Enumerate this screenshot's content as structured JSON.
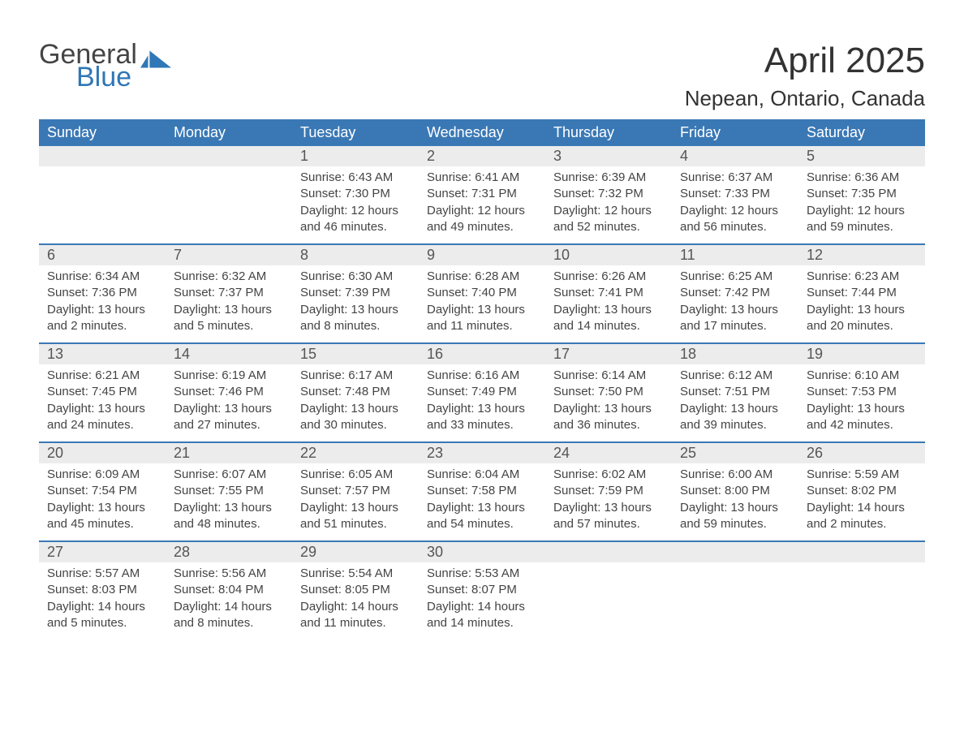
{
  "logo": {
    "text_top": "General",
    "text_bottom": "Blue",
    "flag_color": "#2f77b6"
  },
  "title": "April 2025",
  "location": "Nepean, Ontario, Canada",
  "colors": {
    "header_bg": "#3a78b5",
    "header_text": "#ffffff",
    "daynum_bg": "#ececec",
    "sep": "#3a78b5",
    "body_text": "#444444"
  },
  "weekdays": [
    "Sunday",
    "Monday",
    "Tuesday",
    "Wednesday",
    "Thursday",
    "Friday",
    "Saturday"
  ],
  "weeks": [
    [
      {
        "n": "",
        "lines": []
      },
      {
        "n": "",
        "lines": []
      },
      {
        "n": "1",
        "lines": [
          "Sunrise: 6:43 AM",
          "Sunset: 7:30 PM",
          "Daylight: 12 hours and 46 minutes."
        ]
      },
      {
        "n": "2",
        "lines": [
          "Sunrise: 6:41 AM",
          "Sunset: 7:31 PM",
          "Daylight: 12 hours and 49 minutes."
        ]
      },
      {
        "n": "3",
        "lines": [
          "Sunrise: 6:39 AM",
          "Sunset: 7:32 PM",
          "Daylight: 12 hours and 52 minutes."
        ]
      },
      {
        "n": "4",
        "lines": [
          "Sunrise: 6:37 AM",
          "Sunset: 7:33 PM",
          "Daylight: 12 hours and 56 minutes."
        ]
      },
      {
        "n": "5",
        "lines": [
          "Sunrise: 6:36 AM",
          "Sunset: 7:35 PM",
          "Daylight: 12 hours and 59 minutes."
        ]
      }
    ],
    [
      {
        "n": "6",
        "lines": [
          "Sunrise: 6:34 AM",
          "Sunset: 7:36 PM",
          "Daylight: 13 hours and 2 minutes."
        ]
      },
      {
        "n": "7",
        "lines": [
          "Sunrise: 6:32 AM",
          "Sunset: 7:37 PM",
          "Daylight: 13 hours and 5 minutes."
        ]
      },
      {
        "n": "8",
        "lines": [
          "Sunrise: 6:30 AM",
          "Sunset: 7:39 PM",
          "Daylight: 13 hours and 8 minutes."
        ]
      },
      {
        "n": "9",
        "lines": [
          "Sunrise: 6:28 AM",
          "Sunset: 7:40 PM",
          "Daylight: 13 hours and 11 minutes."
        ]
      },
      {
        "n": "10",
        "lines": [
          "Sunrise: 6:26 AM",
          "Sunset: 7:41 PM",
          "Daylight: 13 hours and 14 minutes."
        ]
      },
      {
        "n": "11",
        "lines": [
          "Sunrise: 6:25 AM",
          "Sunset: 7:42 PM",
          "Daylight: 13 hours and 17 minutes."
        ]
      },
      {
        "n": "12",
        "lines": [
          "Sunrise: 6:23 AM",
          "Sunset: 7:44 PM",
          "Daylight: 13 hours and 20 minutes."
        ]
      }
    ],
    [
      {
        "n": "13",
        "lines": [
          "Sunrise: 6:21 AM",
          "Sunset: 7:45 PM",
          "Daylight: 13 hours and 24 minutes."
        ]
      },
      {
        "n": "14",
        "lines": [
          "Sunrise: 6:19 AM",
          "Sunset: 7:46 PM",
          "Daylight: 13 hours and 27 minutes."
        ]
      },
      {
        "n": "15",
        "lines": [
          "Sunrise: 6:17 AM",
          "Sunset: 7:48 PM",
          "Daylight: 13 hours and 30 minutes."
        ]
      },
      {
        "n": "16",
        "lines": [
          "Sunrise: 6:16 AM",
          "Sunset: 7:49 PM",
          "Daylight: 13 hours and 33 minutes."
        ]
      },
      {
        "n": "17",
        "lines": [
          "Sunrise: 6:14 AM",
          "Sunset: 7:50 PM",
          "Daylight: 13 hours and 36 minutes."
        ]
      },
      {
        "n": "18",
        "lines": [
          "Sunrise: 6:12 AM",
          "Sunset: 7:51 PM",
          "Daylight: 13 hours and 39 minutes."
        ]
      },
      {
        "n": "19",
        "lines": [
          "Sunrise: 6:10 AM",
          "Sunset: 7:53 PM",
          "Daylight: 13 hours and 42 minutes."
        ]
      }
    ],
    [
      {
        "n": "20",
        "lines": [
          "Sunrise: 6:09 AM",
          "Sunset: 7:54 PM",
          "Daylight: 13 hours and 45 minutes."
        ]
      },
      {
        "n": "21",
        "lines": [
          "Sunrise: 6:07 AM",
          "Sunset: 7:55 PM",
          "Daylight: 13 hours and 48 minutes."
        ]
      },
      {
        "n": "22",
        "lines": [
          "Sunrise: 6:05 AM",
          "Sunset: 7:57 PM",
          "Daylight: 13 hours and 51 minutes."
        ]
      },
      {
        "n": "23",
        "lines": [
          "Sunrise: 6:04 AM",
          "Sunset: 7:58 PM",
          "Daylight: 13 hours and 54 minutes."
        ]
      },
      {
        "n": "24",
        "lines": [
          "Sunrise: 6:02 AM",
          "Sunset: 7:59 PM",
          "Daylight: 13 hours and 57 minutes."
        ]
      },
      {
        "n": "25",
        "lines": [
          "Sunrise: 6:00 AM",
          "Sunset: 8:00 PM",
          "Daylight: 13 hours and 59 minutes."
        ]
      },
      {
        "n": "26",
        "lines": [
          "Sunrise: 5:59 AM",
          "Sunset: 8:02 PM",
          "Daylight: 14 hours and 2 minutes."
        ]
      }
    ],
    [
      {
        "n": "27",
        "lines": [
          "Sunrise: 5:57 AM",
          "Sunset: 8:03 PM",
          "Daylight: 14 hours and 5 minutes."
        ]
      },
      {
        "n": "28",
        "lines": [
          "Sunrise: 5:56 AM",
          "Sunset: 8:04 PM",
          "Daylight: 14 hours and 8 minutes."
        ]
      },
      {
        "n": "29",
        "lines": [
          "Sunrise: 5:54 AM",
          "Sunset: 8:05 PM",
          "Daylight: 14 hours and 11 minutes."
        ]
      },
      {
        "n": "30",
        "lines": [
          "Sunrise: 5:53 AM",
          "Sunset: 8:07 PM",
          "Daylight: 14 hours and 14 minutes."
        ]
      },
      {
        "n": "",
        "lines": []
      },
      {
        "n": "",
        "lines": []
      },
      {
        "n": "",
        "lines": []
      }
    ]
  ]
}
